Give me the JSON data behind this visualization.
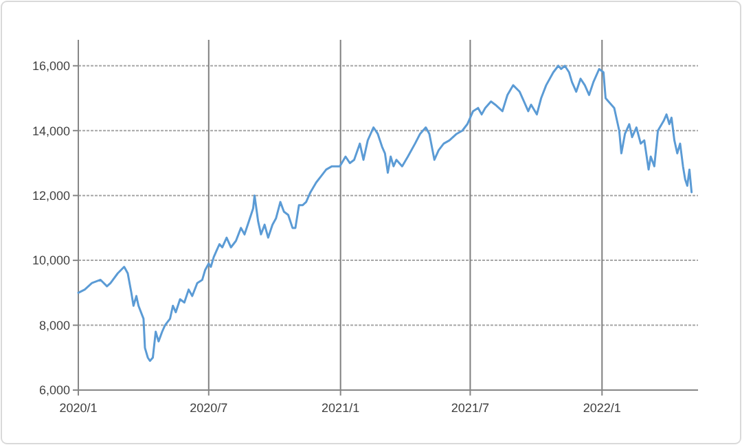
{
  "chart_data": {
    "type": "line",
    "grid": true,
    "line_style": "solid",
    "xlim": [
      "2020-01-01",
      "2022-05-15"
    ],
    "ylim": [
      6000,
      16800
    ],
    "xticks": [
      {
        "value": "2020-01-01",
        "label": "2020/1"
      },
      {
        "value": "2020-07-01",
        "label": "2020/7"
      },
      {
        "value": "2021-01-01",
        "label": "2021/1"
      },
      {
        "value": "2021-07-01",
        "label": "2021/7"
      },
      {
        "value": "2022-01-01",
        "label": "2022/1"
      }
    ],
    "yticks": [
      {
        "value": 6000,
        "label": "6,000"
      },
      {
        "value": 8000,
        "label": "8,000"
      },
      {
        "value": 10000,
        "label": "10,000"
      },
      {
        "value": 12000,
        "label": "12,000"
      },
      {
        "value": 14000,
        "label": "14,000"
      },
      {
        "value": 16000,
        "label": "16,000"
      }
    ],
    "x": [
      "2020-01-01",
      "2020-01-10",
      "2020-01-20",
      "2020-02-01",
      "2020-02-10",
      "2020-02-15",
      "2020-02-25",
      "2020-03-05",
      "2020-03-10",
      "2020-03-15",
      "2020-03-18",
      "2020-03-22",
      "2020-03-25",
      "2020-04-01",
      "2020-04-03",
      "2020-04-07",
      "2020-04-10",
      "2020-04-14",
      "2020-04-18",
      "2020-04-22",
      "2020-04-27",
      "2020-05-01",
      "2020-05-08",
      "2020-05-12",
      "2020-05-16",
      "2020-05-22",
      "2020-05-28",
      "2020-06-03",
      "2020-06-08",
      "2020-06-15",
      "2020-06-22",
      "2020-06-26",
      "2020-07-01",
      "2020-07-04",
      "2020-07-08",
      "2020-07-12",
      "2020-07-16",
      "2020-07-20",
      "2020-07-26",
      "2020-08-01",
      "2020-08-08",
      "2020-08-15",
      "2020-08-20",
      "2020-08-26",
      "2020-09-01",
      "2020-09-03",
      "2020-09-08",
      "2020-09-12",
      "2020-09-17",
      "2020-09-22",
      "2020-09-28",
      "2020-10-03",
      "2020-10-09",
      "2020-10-14",
      "2020-10-20",
      "2020-10-26",
      "2020-10-30",
      "2020-11-04",
      "2020-11-09",
      "2020-11-14",
      "2020-11-20",
      "2020-11-28",
      "2020-12-05",
      "2020-12-12",
      "2020-12-20",
      "2020-12-31",
      "2021-01-08",
      "2021-01-14",
      "2021-01-20",
      "2021-01-28",
      "2021-02-02",
      "2021-02-08",
      "2021-02-16",
      "2021-02-22",
      "2021-02-28",
      "2021-03-04",
      "2021-03-08",
      "2021-03-12",
      "2021-03-16",
      "2021-03-20",
      "2021-03-28",
      "2021-04-05",
      "2021-04-15",
      "2021-04-22",
      "2021-04-30",
      "2021-05-05",
      "2021-05-12",
      "2021-05-18",
      "2021-05-25",
      "2021-06-02",
      "2021-06-12",
      "2021-06-20",
      "2021-06-27",
      "2021-07-05",
      "2021-07-12",
      "2021-07-17",
      "2021-07-22",
      "2021-07-30",
      "2021-08-05",
      "2021-08-15",
      "2021-08-22",
      "2021-08-30",
      "2021-09-08",
      "2021-09-14",
      "2021-09-20",
      "2021-09-24",
      "2021-10-02",
      "2021-10-08",
      "2021-10-15",
      "2021-10-25",
      "2021-11-01",
      "2021-11-05",
      "2021-11-10",
      "2021-11-16",
      "2021-11-20",
      "2021-11-26",
      "2021-12-02",
      "2021-12-08",
      "2021-12-14",
      "2021-12-20",
      "2021-12-28",
      "2022-01-03",
      "2022-01-06",
      "2022-01-10",
      "2022-01-18",
      "2022-01-25",
      "2022-01-28",
      "2022-02-02",
      "2022-02-08",
      "2022-02-12",
      "2022-02-18",
      "2022-02-24",
      "2022-03-01",
      "2022-03-07",
      "2022-03-10",
      "2022-03-15",
      "2022-03-20",
      "2022-03-28",
      "2022-04-01",
      "2022-04-05",
      "2022-04-08",
      "2022-04-12",
      "2022-04-16",
      "2022-04-20",
      "2022-04-24",
      "2022-04-27",
      "2022-04-30",
      "2022-05-03",
      "2022-05-06"
    ],
    "series": [
      {
        "color": "#5b9bd5",
        "values": [
          9000,
          9100,
          9300,
          9400,
          9200,
          9300,
          9600,
          9800,
          9600,
          9000,
          8600,
          8900,
          8600,
          8200,
          7300,
          7000,
          6900,
          7000,
          7800,
          7500,
          7800,
          8000,
          8200,
          8600,
          8400,
          8800,
          8700,
          9100,
          8900,
          9300,
          9400,
          9700,
          9900,
          9800,
          10100,
          10300,
          10500,
          10400,
          10700,
          10400,
          10600,
          11000,
          10800,
          11200,
          11600,
          12000,
          11200,
          10800,
          11100,
          10700,
          11100,
          11300,
          11800,
          11500,
          11400,
          11000,
          11000,
          11700,
          11700,
          11800,
          12100,
          12400,
          12600,
          12800,
          12900,
          12900,
          13200,
          13000,
          13100,
          13600,
          13100,
          13700,
          14100,
          13900,
          13500,
          13300,
          12700,
          13200,
          12900,
          13100,
          12900,
          13200,
          13600,
          13900,
          14100,
          13900,
          13100,
          13400,
          13600,
          13700,
          13900,
          14000,
          14200,
          14600,
          14700,
          14500,
          14700,
          14900,
          14800,
          14600,
          15100,
          15400,
          15200,
          14900,
          14600,
          14800,
          14500,
          15000,
          15400,
          15800,
          16000,
          15900,
          16000,
          15800,
          15500,
          15200,
          15600,
          15400,
          15100,
          15500,
          15900,
          15800,
          15000,
          14900,
          14700,
          14000,
          13300,
          13900,
          14200,
          13800,
          14100,
          13600,
          13700,
          12800,
          13200,
          12900,
          14000,
          14300,
          14500,
          14200,
          14400,
          13700,
          13300,
          13600,
          12900,
          12500,
          12300,
          12800,
          12100
        ]
      }
    ]
  }
}
